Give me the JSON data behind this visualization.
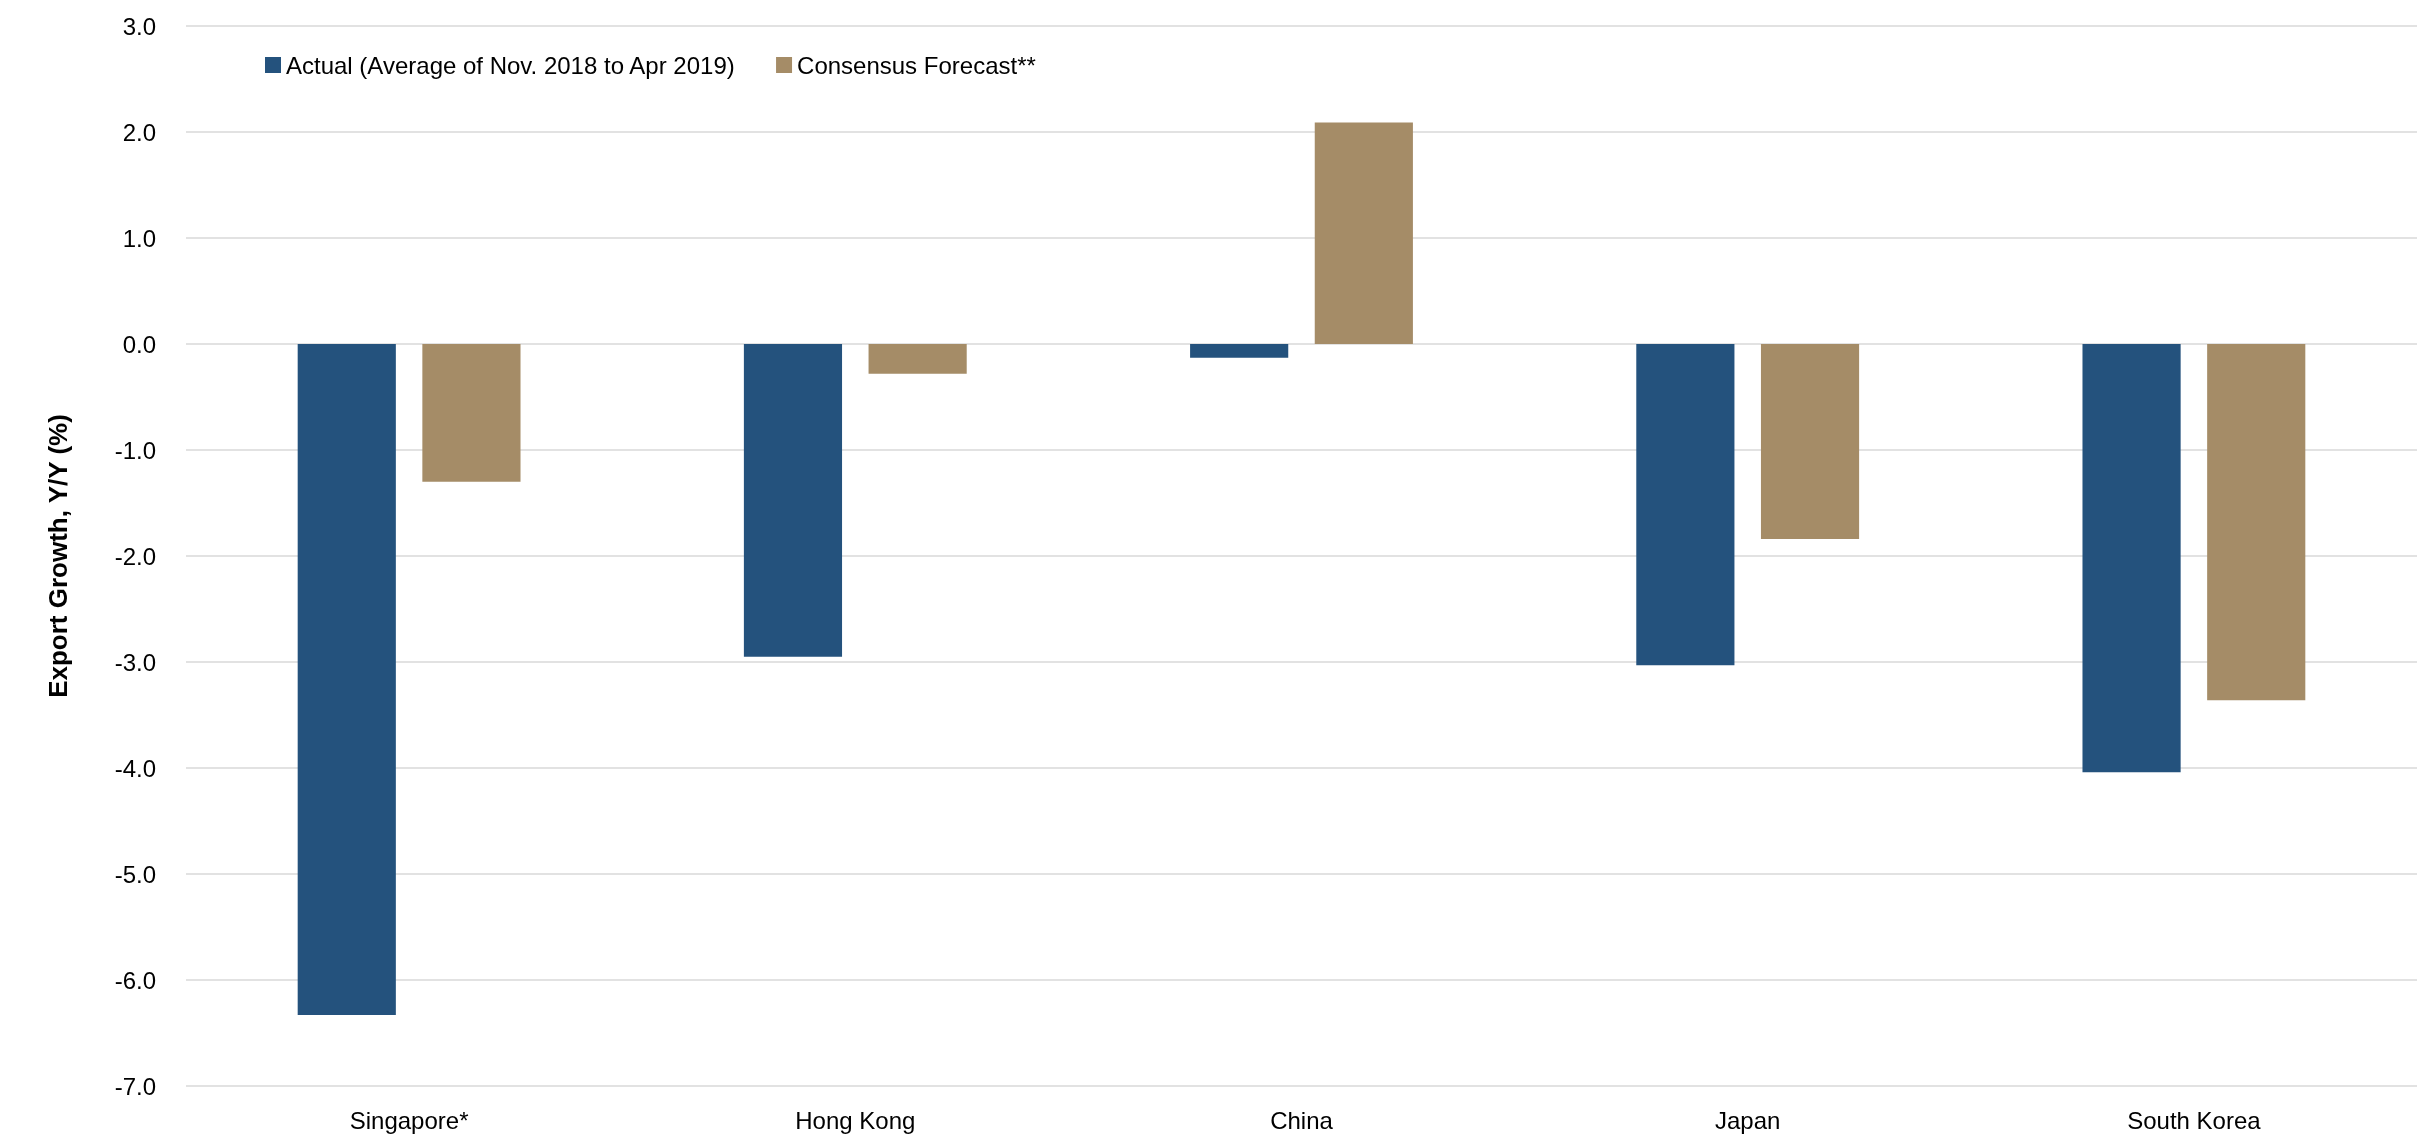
{
  "chart_data": {
    "type": "bar",
    "ylabel": "Export Growth, Y/Y (%)",
    "categories": [
      "Singapore*",
      "Hong Kong",
      "China",
      "Japan",
      "South Korea"
    ],
    "series": [
      {
        "name": "Actual (Average of Nov. 2018 to Apr 2019)",
        "color": "#24527d",
        "values": [
          -6.33,
          -2.95,
          -0.13,
          -3.03,
          -4.04
        ]
      },
      {
        "name": "Consensus Forecast**",
        "color": "#a58c67",
        "values": [
          -1.3,
          -0.28,
          2.09,
          -1.84,
          -3.36
        ]
      }
    ],
    "ylim": [
      -7,
      3
    ],
    "yticks": [
      {
        "value": -7,
        "label": "-7.0"
      },
      {
        "value": -6,
        "label": "-6.0"
      },
      {
        "value": -5,
        "label": "-5.0"
      },
      {
        "value": -4,
        "label": "-4.0"
      },
      {
        "value": -3,
        "label": "-3.0"
      },
      {
        "value": -2,
        "label": "-2.0"
      },
      {
        "value": -1,
        "label": "-1.0"
      },
      {
        "value": 0,
        "label": "0.0"
      },
      {
        "value": 1,
        "label": "1.0"
      },
      {
        "value": 2,
        "label": "2.0"
      },
      {
        "value": 3,
        "label": "3.0"
      }
    ],
    "grid": "y",
    "legend": "top left"
  }
}
